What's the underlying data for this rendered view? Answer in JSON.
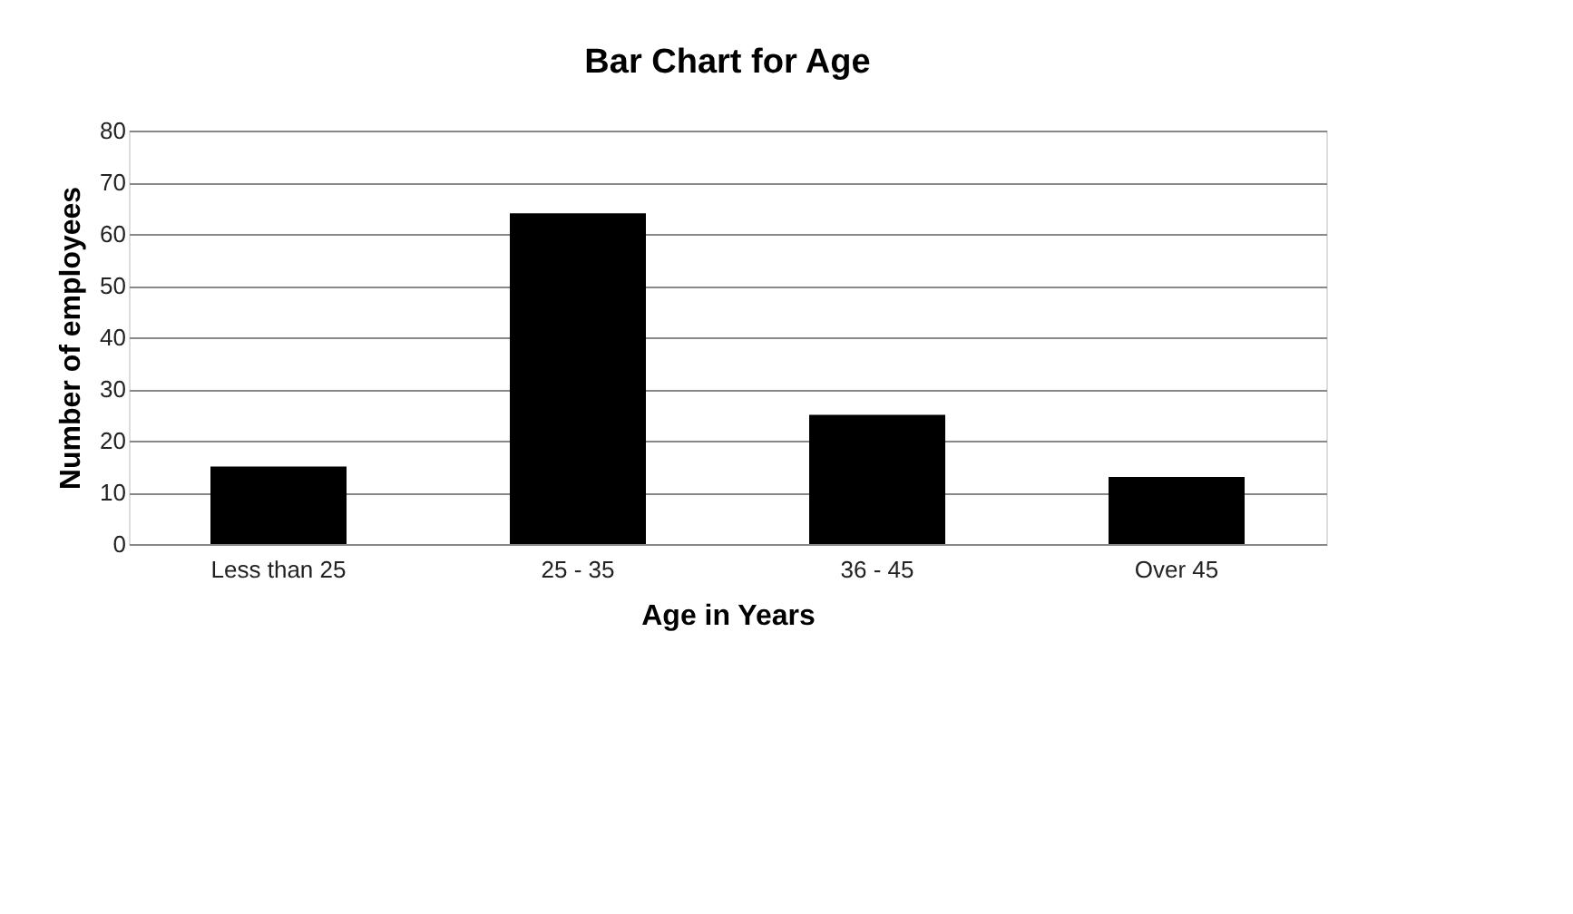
{
  "chart_data": {
    "type": "bar",
    "title": "Bar Chart for Age",
    "xlabel": "Age in Years",
    "ylabel": "Number of employees",
    "categories": [
      "Less than 25",
      "25 - 35",
      "36 - 45",
      "Over 45"
    ],
    "values": [
      15,
      64,
      25,
      13
    ],
    "color": "#000000",
    "ylim": [
      0,
      80
    ],
    "yticks": [
      0,
      10,
      20,
      30,
      40,
      50,
      60,
      70,
      80
    ],
    "grid": "y"
  }
}
